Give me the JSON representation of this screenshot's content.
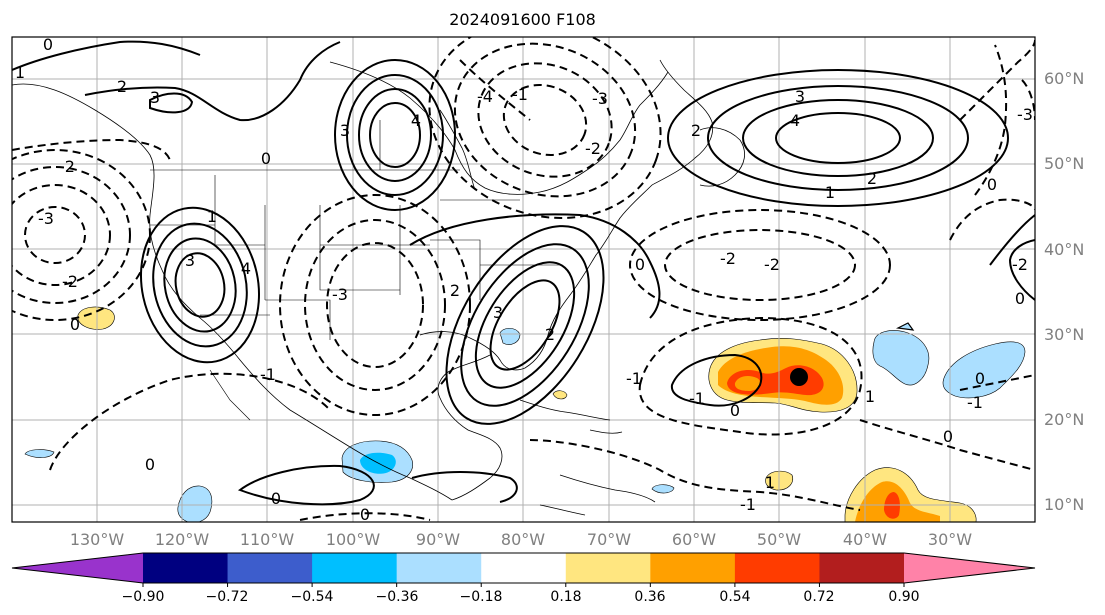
{
  "title": "2024091600 F108",
  "map": {
    "projection": "PlateCarree",
    "extent": {
      "lon_min": -140,
      "lon_max": -20,
      "lat_min": 8,
      "lat_max": 65
    },
    "gridlines": true,
    "coastlines": true,
    "borders": true,
    "states": true,
    "lon_labels": [
      "130°W",
      "120°W",
      "110°W",
      "100°W",
      "90°W",
      "80°W",
      "70°W",
      "60°W",
      "50°W",
      "40°W",
      "30°W"
    ],
    "lat_labels": [
      "10°N",
      "20°N",
      "30°N",
      "40°N",
      "50°N",
      "60°N"
    ],
    "contour_color": "#000000",
    "contour_labels": [
      "0",
      "1",
      "2",
      "3",
      "4",
      "-1",
      "-2",
      "-3",
      "-4"
    ],
    "marker": {
      "lon": -47.5,
      "lat": 25.0,
      "color": "#000000",
      "description": "black dot"
    }
  },
  "colorbar": {
    "colors": [
      "#9933cc",
      "#000080",
      "#3d5dcc",
      "#00bfff",
      "#abdfff",
      "#ffffff",
      "#ffe680",
      "#ffa000",
      "#ff3c00",
      "#b21e1e",
      "#ff82a8"
    ],
    "tick_labels": [
      "−0.90",
      "−0.72",
      "−0.54",
      "−0.36",
      "−0.18",
      "0.18",
      "0.36",
      "0.54",
      "0.72",
      "0.90"
    ],
    "extend": "both"
  }
}
